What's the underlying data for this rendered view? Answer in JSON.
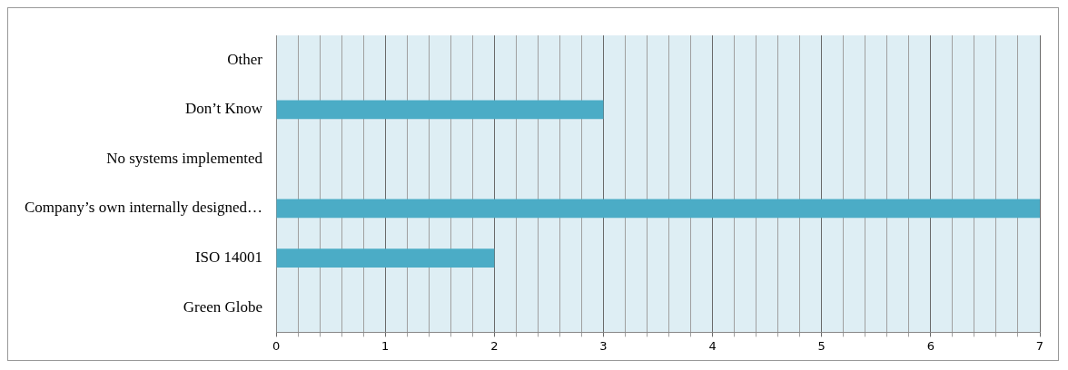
{
  "chart_data": {
    "type": "bar",
    "orientation": "horizontal",
    "categories": [
      "Other",
      "Don’t Know",
      "No systems implemented",
      "Company’s own internally designed…",
      "ISO 14001",
      "Green Globe"
    ],
    "values": [
      0,
      3,
      0,
      7,
      2,
      0
    ],
    "color": "#4bacc6",
    "xlim": [
      0,
      7
    ],
    "xticks": [
      0,
      {
        "value": 0.2,
        "label": null
      },
      {
        "value": 0.4,
        "label": null
      },
      {
        "value": 0.6,
        "label": null
      },
      {
        "value": 0.8,
        "label": null
      },
      1,
      {
        "value": 1.2,
        "label": null
      },
      {
        "value": 1.4,
        "label": null
      },
      {
        "value": 1.6,
        "label": null
      },
      {
        "value": 1.8,
        "label": null
      },
      2,
      {
        "value": 2.2,
        "label": null
      },
      {
        "value": 2.4,
        "label": null
      },
      {
        "value": 2.6,
        "label": null
      },
      {
        "value": 2.8,
        "label": null
      },
      3,
      {
        "value": 3.2,
        "label": null
      },
      {
        "value": 3.4,
        "label": null
      },
      {
        "value": 3.6,
        "label": null
      },
      {
        "value": 3.8,
        "label": null
      },
      4,
      {
        "value": 4.2,
        "label": null
      },
      {
        "value": 4.4,
        "label": null
      },
      {
        "value": 4.6,
        "label": null
      },
      {
        "value": 4.8,
        "label": null
      },
      5,
      {
        "value": 5.2,
        "label": null
      },
      {
        "value": 5.4,
        "label": null
      },
      {
        "value": 5.6,
        "label": null
      },
      {
        "value": 5.8,
        "label": null
      },
      6,
      {
        "value": 6.2,
        "label": null
      },
      {
        "value": 6.4,
        "label": null
      },
      {
        "value": 6.6,
        "label": null
      },
      {
        "value": 6.8,
        "label": null
      },
      7
    ],
    "grid": "x"
  }
}
